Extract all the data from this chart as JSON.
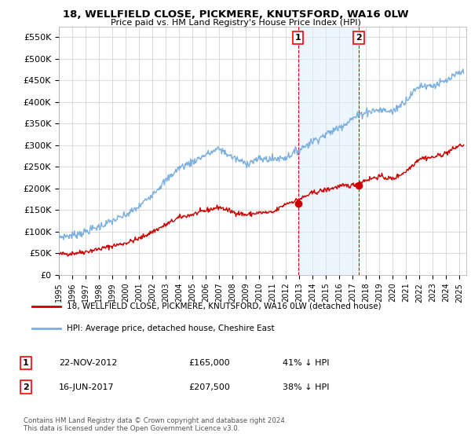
{
  "title": "18, WELLFIELD CLOSE, PICKMERE, KNUTSFORD, WA16 0LW",
  "subtitle": "Price paid vs. HM Land Registry's House Price Index (HPI)",
  "ylim": [
    0,
    575000
  ],
  "yticks": [
    0,
    50000,
    100000,
    150000,
    200000,
    250000,
    300000,
    350000,
    400000,
    450000,
    500000,
    550000
  ],
  "ytick_labels": [
    "£0",
    "£50K",
    "£100K",
    "£150K",
    "£200K",
    "£250K",
    "£300K",
    "£350K",
    "£400K",
    "£450K",
    "£500K",
    "£550K"
  ],
  "hpi_color": "#7aafe0",
  "price_color": "#cc0000",
  "marker_color": "#cc0000",
  "sale1_x": 2012.9,
  "sale1_price": 165000,
  "sale1_label": "1",
  "sale2_x": 2017.45,
  "sale2_price": 207500,
  "sale2_label": "2",
  "shade_color": "#ddeeff",
  "shade_alpha": 0.5,
  "legend_line1": "18, WELLFIELD CLOSE, PICKMERE, KNUTSFORD, WA16 0LW (detached house)",
  "legend_line2": "HPI: Average price, detached house, Cheshire East",
  "table_row1": [
    "1",
    "22-NOV-2012",
    "£165,000",
    "41% ↓ HPI"
  ],
  "table_row2": [
    "2",
    "16-JUN-2017",
    "£207,500",
    "38% ↓ HPI"
  ],
  "footnote": "Contains HM Land Registry data © Crown copyright and database right 2024.\nThis data is licensed under the Open Government Licence v3.0.",
  "background_color": "#ffffff",
  "grid_color": "#cccccc",
  "xlim_start": 1995,
  "xlim_end": 2025.5
}
